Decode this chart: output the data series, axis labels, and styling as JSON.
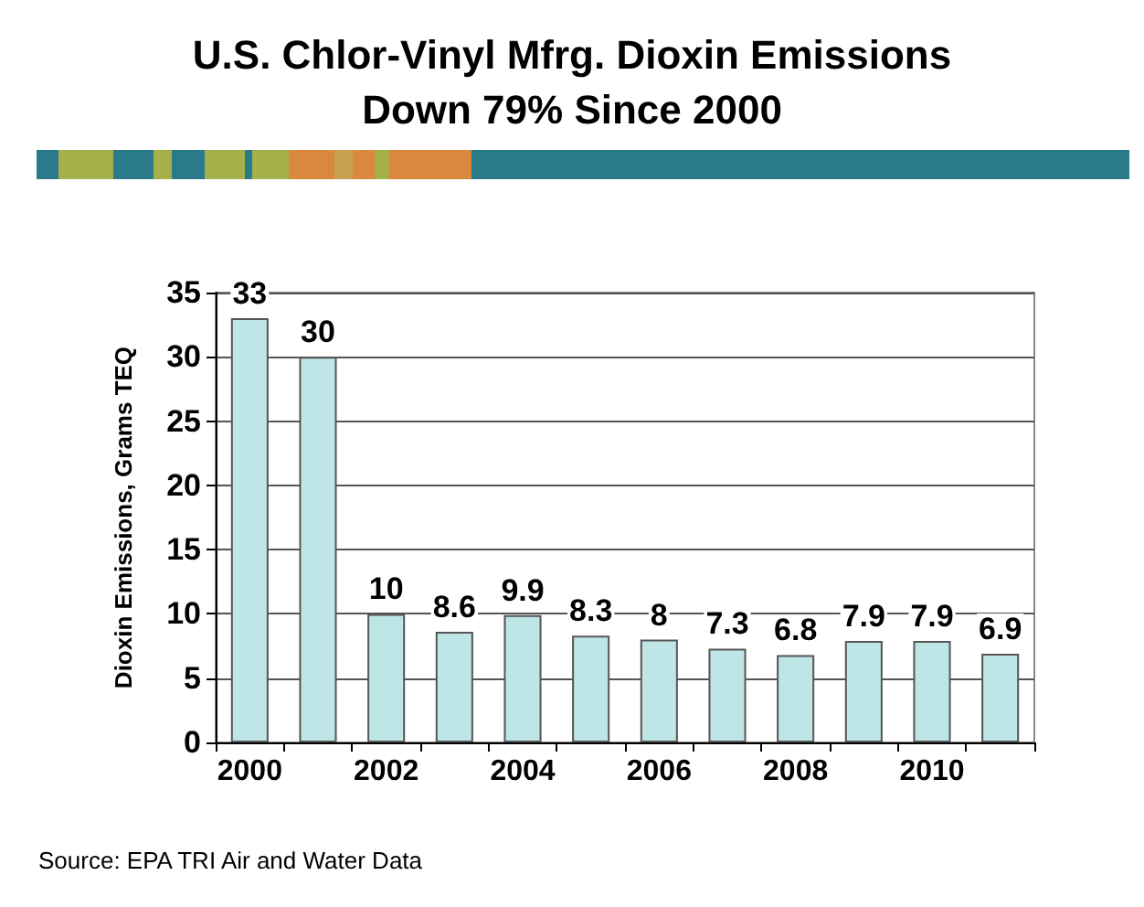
{
  "chart_data": {
    "type": "bar",
    "title": "U.S. Chlor-Vinyl Mfrg. Dioxin Emissions",
    "subtitle": "Down 79% Since 2000",
    "ylabel": "Dioxin Emissions, Grams TEQ",
    "categories": [
      "2000",
      null,
      "2002",
      null,
      "2004",
      null,
      "2006",
      null,
      "2008",
      null,
      "2010",
      null
    ],
    "values": [
      33,
      30,
      10,
      8.6,
      9.9,
      8.3,
      8,
      7.3,
      6.8,
      7.9,
      7.9,
      6.9
    ],
    "color": "#bfe6e6",
    "ylim": [
      0,
      35
    ],
    "yticks": [
      0,
      5,
      10,
      15,
      20,
      25,
      30,
      35
    ],
    "grid": "y",
    "data_labels": true,
    "annotations": [
      "Source: EPA TRI Air and Water Data"
    ]
  }
}
